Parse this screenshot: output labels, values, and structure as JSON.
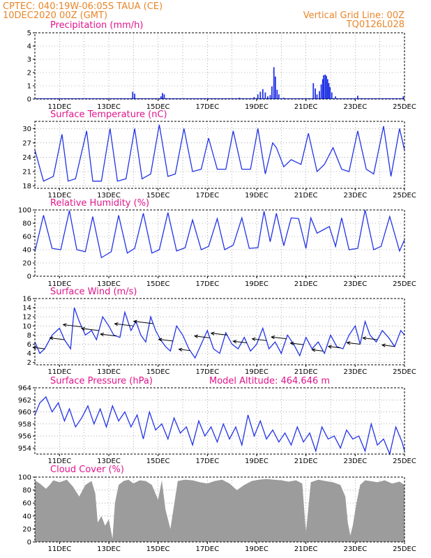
{
  "header": {
    "line1": "CPTEC:   040:19W-06:05S   TAUA (CE)",
    "line2": "10DEC2020 00Z (GMT)",
    "right1": "Vertical Grid Line: 00Z",
    "right2": "TQ0126L028"
  },
  "colors": {
    "header": "#e8862a",
    "title": "#e0158c",
    "series": "#2233e6",
    "cloud": "#9c9c9c",
    "arrow": "#000000"
  },
  "chart_data": [
    {
      "type": "bar",
      "title": "Precipitation (mm/h)",
      "ylim": [
        0,
        5
      ],
      "yticks": [
        0,
        1,
        2,
        3,
        4,
        5
      ],
      "x_range_days": [
        "10DEC",
        "25DEC"
      ],
      "x_tick_labels": [
        "11DEC",
        "13DEC",
        "15DEC",
        "17DEC",
        "19DEC",
        "21DEC",
        "23DEC",
        "25DEC"
      ],
      "events": [
        {
          "day": 13.97,
          "value": 0.55
        },
        {
          "day": 14.05,
          "value": 0.4
        },
        {
          "day": 15.12,
          "value": 0.2
        },
        {
          "day": 15.18,
          "value": 0.45
        },
        {
          "day": 15.25,
          "value": 0.35
        },
        {
          "day": 16.5,
          "value": 0.05
        },
        {
          "day": 18.3,
          "value": 0.1
        },
        {
          "day": 18.9,
          "value": 0.15
        },
        {
          "day": 19.05,
          "value": 0.35
        },
        {
          "day": 19.15,
          "value": 0.55
        },
        {
          "day": 19.25,
          "value": 0.75
        },
        {
          "day": 19.35,
          "value": 0.5
        },
        {
          "day": 19.45,
          "value": 0.2
        },
        {
          "day": 19.55,
          "value": 0.3
        },
        {
          "day": 19.62,
          "value": 0.95
        },
        {
          "day": 19.7,
          "value": 2.4
        },
        {
          "day": 19.76,
          "value": 1.7
        },
        {
          "day": 19.83,
          "value": 0.7
        },
        {
          "day": 19.9,
          "value": 0.35
        },
        {
          "day": 20.1,
          "value": 0.1
        },
        {
          "day": 21.0,
          "value": 0.05
        },
        {
          "day": 21.3,
          "value": 1.2
        },
        {
          "day": 21.38,
          "value": 0.8
        },
        {
          "day": 21.45,
          "value": 0.35
        },
        {
          "day": 21.55,
          "value": 0.6
        },
        {
          "day": 21.62,
          "value": 1.1
        },
        {
          "day": 21.68,
          "value": 1.5
        },
        {
          "day": 21.72,
          "value": 1.8
        },
        {
          "day": 21.78,
          "value": 1.85
        },
        {
          "day": 21.83,
          "value": 1.75
        },
        {
          "day": 21.88,
          "value": 1.5
        },
        {
          "day": 21.93,
          "value": 1.2
        },
        {
          "day": 21.98,
          "value": 0.9
        },
        {
          "day": 22.05,
          "value": 0.5
        },
        {
          "day": 22.2,
          "value": 0.2
        },
        {
          "day": 23.1,
          "value": 0.25
        },
        {
          "day": 24.95,
          "value": 0.2
        }
      ]
    },
    {
      "type": "line",
      "title": "Surface Temperature (nC)",
      "ylim": [
        17.5,
        31.5
      ],
      "yticks": [
        18,
        21,
        24,
        27,
        30
      ],
      "x_tick_labels": [
        "11DEC",
        "13DEC",
        "15DEC",
        "17DEC",
        "19DEC",
        "21DEC",
        "23DEC",
        "25DEC"
      ],
      "series": [
        {
          "days": [
            10.0,
            10.35,
            10.75,
            11.1,
            11.35,
            11.65,
            12.1,
            12.35,
            12.7,
            13.05,
            13.35,
            13.7,
            14.05,
            14.35,
            14.7,
            15.05,
            15.4,
            15.7,
            16.05,
            16.4,
            16.75,
            17.05,
            17.4,
            17.75,
            18.05,
            18.4,
            18.75,
            19.05,
            19.35,
            19.65,
            19.8,
            20.1,
            20.4,
            20.8,
            21.1,
            21.45,
            21.75,
            22.1,
            22.45,
            22.75,
            23.1,
            23.45,
            23.75,
            24.15,
            24.45,
            24.8,
            25.0
          ],
          "values": [
            25.5,
            19.0,
            20.0,
            28.8,
            19.0,
            19.5,
            29.5,
            19.0,
            19.0,
            30.0,
            19.0,
            19.5,
            30.0,
            19.5,
            20.5,
            30.8,
            20.0,
            20.5,
            30.0,
            21.0,
            21.5,
            28.0,
            21.5,
            21.5,
            29.5,
            21.5,
            21.5,
            30.0,
            20.5,
            27.0,
            26.0,
            22.0,
            23.5,
            22.5,
            29.0,
            21.0,
            22.5,
            26.0,
            21.5,
            21.0,
            29.5,
            21.5,
            20.5,
            30.5,
            20.0,
            30.0,
            25.5
          ]
        }
      ]
    },
    {
      "type": "line",
      "title": "Relative Humidity (%)",
      "ylim": [
        0,
        100
      ],
      "yticks": [
        0,
        20,
        40,
        60,
        80,
        100
      ],
      "x_tick_labels": [
        "11DEC",
        "13DEC",
        "15DEC",
        "17DEC",
        "19DEC",
        "21DEC",
        "23DEC",
        "25DEC"
      ],
      "series": [
        {
          "days": [
            10.0,
            10.35,
            10.7,
            11.05,
            11.4,
            11.7,
            12.05,
            12.35,
            12.7,
            13.1,
            13.4,
            13.75,
            14.05,
            14.4,
            14.75,
            15.05,
            15.4,
            15.75,
            16.1,
            16.4,
            16.75,
            17.05,
            17.4,
            17.7,
            18.05,
            18.4,
            18.7,
            19.05,
            19.3,
            19.55,
            19.8,
            20.1,
            20.4,
            20.7,
            21.0,
            21.2,
            21.45,
            21.7,
            21.95,
            22.2,
            22.45,
            22.75,
            23.1,
            23.4,
            23.75,
            24.05,
            24.4,
            24.8,
            25.0
          ],
          "values": [
            37.0,
            92.0,
            42.0,
            40.0,
            99.0,
            40.0,
            37.0,
            90.0,
            28.0,
            37.0,
            92.0,
            35.0,
            42.0,
            95.0,
            35.0,
            40.0,
            96.0,
            38.0,
            43.0,
            85.0,
            40.0,
            45.0,
            87.0,
            40.0,
            47.0,
            88.0,
            42.0,
            43.0,
            98.0,
            52.0,
            95.0,
            46.0,
            88.0,
            87.0,
            42.0,
            88.0,
            65.0,
            70.0,
            75.0,
            45.0,
            88.0,
            40.0,
            42.0,
            100.0,
            40.0,
            45.0,
            90.0,
            38.0,
            55.0
          ]
        }
      ]
    },
    {
      "type": "line",
      "title": "Surface Wind (m/s)",
      "ylim": [
        1.5,
        16
      ],
      "yticks": [
        2,
        4,
        6,
        8,
        10,
        12,
        14,
        16
      ],
      "x_tick_labels": [
        "11DEC",
        "13DEC",
        "15DEC",
        "17DEC",
        "19DEC",
        "21DEC",
        "23DEC",
        "25DEC"
      ],
      "series": [
        {
          "days": [
            10.0,
            10.2,
            10.4,
            10.7,
            11.0,
            11.2,
            11.45,
            11.6,
            11.8,
            12.05,
            12.3,
            12.5,
            12.75,
            13.0,
            13.2,
            13.45,
            13.65,
            13.9,
            14.1,
            14.3,
            14.5,
            14.7,
            14.9,
            15.1,
            15.3,
            15.5,
            15.75,
            16.0,
            16.25,
            16.5,
            16.75,
            17.0,
            17.25,
            17.5,
            17.75,
            18.0,
            18.25,
            18.5,
            18.75,
            19.0,
            19.25,
            19.5,
            19.75,
            20.0,
            20.25,
            20.5,
            20.75,
            21.0,
            21.25,
            21.5,
            21.75,
            22.0,
            22.25,
            22.5,
            22.75,
            23.0,
            23.2,
            23.4,
            23.6,
            23.85,
            24.1,
            24.35,
            24.6,
            24.85,
            25.0
          ],
          "values": [
            6.5,
            4.0,
            5.0,
            8.0,
            9.5,
            7.0,
            5.0,
            14.0,
            11.0,
            8.0,
            9.0,
            7.0,
            12.0,
            10.0,
            8.0,
            7.5,
            13.0,
            9.0,
            11.0,
            8.0,
            6.5,
            12.0,
            9.0,
            7.0,
            5.5,
            4.5,
            10.0,
            8.0,
            5.0,
            3.0,
            6.0,
            9.0,
            5.0,
            4.0,
            8.5,
            6.0,
            5.0,
            7.5,
            4.5,
            6.0,
            9.5,
            5.0,
            6.5,
            4.0,
            8.0,
            6.0,
            3.5,
            7.5,
            5.0,
            6.5,
            4.0,
            8.0,
            5.5,
            5.0,
            8.0,
            10.0,
            6.0,
            11.0,
            8.0,
            6.5,
            9.0,
            7.5,
            5.5,
            9.0,
            8.0
          ]
        }
      ],
      "arrows": [
        {
          "day": 10.4,
          "dir": "left"
        },
        {
          "day": 11.2,
          "dir": "left"
        },
        {
          "day": 11.9,
          "dir": "left"
        },
        {
          "day": 12.6,
          "dir": "left"
        },
        {
          "day": 13.3,
          "dir": "left"
        },
        {
          "day": 14.0,
          "dir": "left"
        },
        {
          "day": 14.8,
          "dir": "left"
        },
        {
          "day": 15.6,
          "dir": "left"
        },
        {
          "day": 16.3,
          "dir": "left"
        },
        {
          "day": 17.1,
          "dir": "left"
        },
        {
          "day": 17.8,
          "dir": "left"
        },
        {
          "day": 18.6,
          "dir": "left"
        },
        {
          "day": 19.4,
          "dir": "left"
        },
        {
          "day": 20.2,
          "dir": "left"
        },
        {
          "day": 20.9,
          "dir": "left"
        },
        {
          "day": 21.7,
          "dir": "left"
        },
        {
          "day": 22.4,
          "dir": "left"
        },
        {
          "day": 23.2,
          "dir": "left"
        },
        {
          "day": 23.9,
          "dir": "left"
        },
        {
          "day": 24.6,
          "dir": "left"
        }
      ]
    },
    {
      "type": "line",
      "title": "Surface Pressure (hPa)",
      "subtitle": "Model Altitude:  464.646  m",
      "ylim": [
        953,
        964
      ],
      "yticks": [
        954,
        956,
        958,
        960,
        962,
        964
      ],
      "x_tick_labels": [
        "11DEC",
        "13DEC",
        "15DEC",
        "17DEC",
        "19DEC",
        "21DEC",
        "23DEC",
        "25DEC"
      ],
      "series": [
        {
          "days": [
            10.0,
            10.2,
            10.45,
            10.7,
            10.95,
            11.2,
            11.4,
            11.65,
            11.9,
            12.15,
            12.4,
            12.65,
            12.9,
            13.15,
            13.4,
            13.65,
            13.9,
            14.15,
            14.4,
            14.65,
            14.9,
            15.15,
            15.4,
            15.65,
            15.9,
            16.15,
            16.4,
            16.65,
            16.9,
            17.15,
            17.4,
            17.65,
            17.9,
            18.15,
            18.4,
            18.65,
            18.9,
            19.15,
            19.4,
            19.65,
            19.9,
            20.15,
            20.4,
            20.65,
            20.9,
            21.15,
            21.4,
            21.65,
            21.9,
            22.15,
            22.4,
            22.65,
            22.9,
            23.15,
            23.4,
            23.65,
            23.9,
            24.15,
            24.4,
            24.65,
            24.9,
            25.0
          ],
          "values": [
            959.5,
            961.5,
            962.5,
            960.0,
            961.5,
            958.5,
            960.5,
            957.5,
            959.0,
            961.0,
            958.0,
            960.5,
            957.5,
            961.0,
            958.5,
            960.0,
            957.5,
            959.5,
            955.5,
            960.0,
            957.0,
            958.0,
            955.5,
            959.0,
            956.5,
            957.5,
            954.5,
            958.5,
            956.0,
            957.5,
            955.0,
            958.0,
            955.5,
            957.5,
            954.5,
            959.5,
            956.0,
            958.5,
            955.5,
            957.0,
            955.0,
            956.5,
            954.5,
            957.5,
            955.0,
            956.5,
            953.5,
            957.5,
            955.5,
            956.0,
            954.0,
            957.0,
            955.5,
            956.0,
            953.5,
            958.0,
            954.5,
            955.5,
            953.0,
            957.5,
            955.0,
            953.5
          ]
        }
      ]
    },
    {
      "type": "area",
      "title": "Cloud Cover (%)",
      "ylim": [
        0,
        100
      ],
      "yticks": [
        0,
        20,
        40,
        60,
        80,
        100
      ],
      "x_tick_labels": [
        "11DEC",
        "13DEC",
        "15DEC",
        "17DEC",
        "19DEC",
        "21DEC",
        "23DEC",
        "25DEC"
      ],
      "series": [
        {
          "days": [
            10.0,
            10.2,
            10.45,
            10.6,
            10.75,
            11.0,
            11.3,
            11.55,
            11.8,
            12.05,
            12.3,
            12.45,
            12.55,
            12.7,
            12.85,
            13.0,
            13.15,
            13.25,
            13.4,
            13.6,
            13.8,
            14.0,
            14.25,
            14.5,
            14.75,
            15.0,
            15.15,
            15.3,
            15.5,
            15.8,
            16.1,
            16.4,
            16.7,
            17.0,
            17.3,
            17.6,
            17.9,
            18.2,
            18.5,
            18.8,
            19.1,
            19.4,
            19.7,
            20.0,
            20.3,
            20.6,
            20.85,
            21.0,
            21.2,
            21.5,
            21.8,
            22.1,
            22.4,
            22.6,
            22.7,
            22.8,
            22.9,
            23.05,
            23.2,
            23.4,
            23.6,
            23.9,
            24.2,
            24.5,
            24.8,
            25.0
          ],
          "values": [
            95.0,
            90.0,
            82.0,
            88.0,
            95.0,
            92.0,
            96.0,
            85.0,
            70.0,
            88.0,
            94.0,
            75.0,
            30.0,
            40.0,
            25.0,
            35.0,
            5.0,
            60.0,
            88.0,
            94.0,
            96.0,
            90.0,
            95.0,
            94.0,
            88.0,
            65.0,
            95.0,
            50.0,
            20.0,
            94.0,
            96.0,
            95.0,
            92.0,
            90.0,
            94.0,
            96.0,
            90.0,
            80.0,
            88.0,
            94.0,
            96.0,
            97.0,
            96.0,
            95.0,
            93.0,
            95.0,
            90.0,
            15.0,
            92.0,
            96.0,
            94.0,
            92.0,
            88.0,
            70.0,
            30.0,
            10.0,
            25.0,
            60.0,
            88.0,
            95.0,
            94.0,
            92.0,
            95.0,
            90.0,
            93.0,
            88.0
          ]
        }
      ]
    }
  ]
}
